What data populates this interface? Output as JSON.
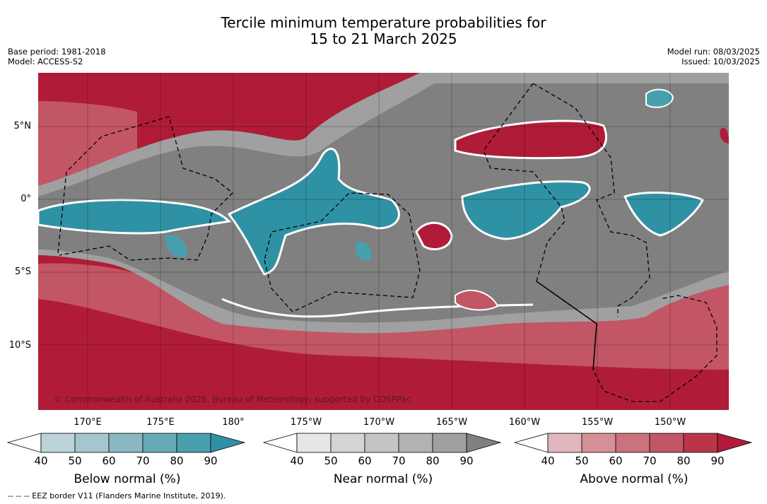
{
  "title": {
    "line1": "Tercile minimum temperature probabilities for",
    "line2": "15 to 21 March 2025"
  },
  "meta": {
    "base_period": "Base period: 1981-2018",
    "model": "Model: ACCESS-S2",
    "model_run": "Model run: 08/03/2025",
    "issued": "Issued: 10/03/2025"
  },
  "map": {
    "lat_labels": [
      "5°N",
      "0°",
      "5°S",
      "10°S"
    ],
    "lon_labels": [
      "170°E",
      "175°E",
      "180°",
      "175°W",
      "170°W",
      "165°W",
      "160°W",
      "155°W",
      "150°W"
    ],
    "copyright": "© Commonwealth of Australia 2025, Bureau of Meteorology, supported by COSPPac"
  },
  "legend": {
    "ticks": [
      "40",
      "50",
      "60",
      "70",
      "80",
      "90"
    ],
    "below": {
      "label": "Below normal (%)",
      "colors": [
        "#ffffff",
        "#bcd3d9",
        "#a4c6cc",
        "#89b8c2",
        "#69aab7",
        "#48a0ae",
        "#2f92a4"
      ]
    },
    "near": {
      "label": "Near normal (%)",
      "colors": [
        "#ffffff",
        "#e6e6e6",
        "#d4d4d4",
        "#c4c4c4",
        "#b2b2b2",
        "#a0a0a0",
        "#808080"
      ]
    },
    "above": {
      "label": "Above normal (%)",
      "colors": [
        "#ffffff",
        "#e2b6bd",
        "#d69097",
        "#ca727d",
        "#c25665",
        "#b93649",
        "#b01c38"
      ]
    }
  },
  "footnote": "--  --  -- EEZ border V11 (Flanders Marine Institute, 2019)."
}
